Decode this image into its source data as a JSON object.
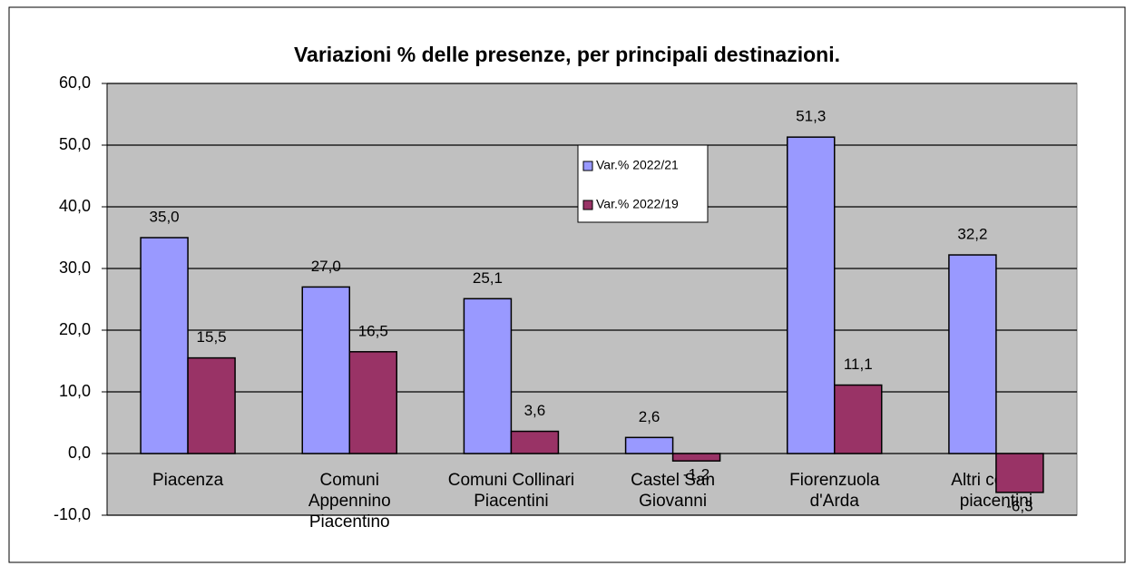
{
  "chart_data": {
    "type": "bar",
    "title": "Variazioni % delle presenze, per principali destinazioni.",
    "categories": [
      "Piacenza",
      "Comuni\nAppennino\nPiacentino",
      "Comuni Collinari\nPiacentini",
      "Castel San\nGiovanni",
      "Fiorenzuola\nd'Arda",
      "Altri comuni\npiacentini"
    ],
    "series": [
      {
        "name": "Var.% 2022/21",
        "color": "#9999ff",
        "values": [
          35.0,
          27.0,
          25.1,
          2.6,
          51.3,
          32.2
        ],
        "value_labels": [
          "35,0",
          "27,0",
          "25,1",
          "2,6",
          "51,3",
          "32,2"
        ]
      },
      {
        "name": "Var.% 2022/19",
        "color": "#993366",
        "values": [
          15.5,
          16.5,
          3.6,
          -1.2,
          11.1,
          -6.3
        ],
        "value_labels": [
          "15,5",
          "16,5",
          "3,6",
          "-1,2",
          "11,1",
          "-6,3"
        ]
      }
    ],
    "ylim": [
      -10,
      60
    ],
    "yticks": [
      {
        "value": -10,
        "label": "-10,0"
      },
      {
        "value": 0,
        "label": "0,0"
      },
      {
        "value": 10,
        "label": "10,0"
      },
      {
        "value": 20,
        "label": "20,0"
      },
      {
        "value": 30,
        "label": "30,0"
      },
      {
        "value": 40,
        "label": "40,0"
      },
      {
        "value": 50,
        "label": "50,0"
      },
      {
        "value": 60,
        "label": "60,0"
      }
    ],
    "grid": true,
    "plot_background": "#c0c0c0"
  }
}
